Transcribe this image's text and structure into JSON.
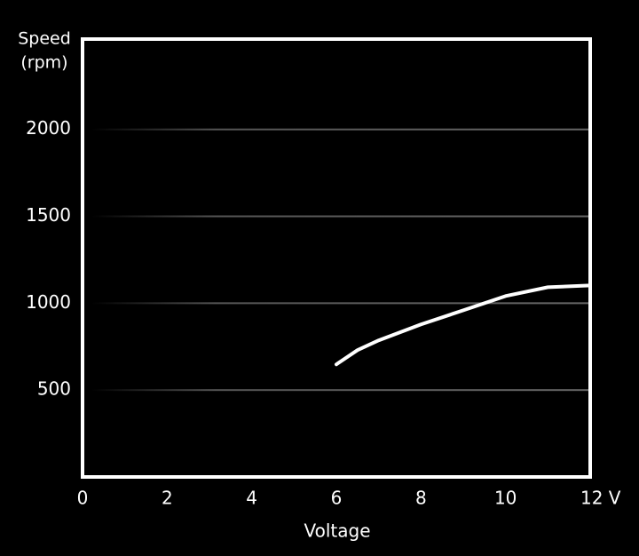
{
  "chart_data": {
    "type": "line",
    "y_label": [
      "Speed",
      "(rpm)"
    ],
    "x_label": "Voltage",
    "x": [
      6,
      6.5,
      7,
      8,
      9,
      10,
      11,
      12
    ],
    "series": [
      {
        "name": "Speed",
        "color": "#ffffff",
        "values": [
          648,
          730,
          786,
          878,
          959,
          1041,
          1092,
          1102
        ]
      }
    ],
    "xlim": [
      0,
      12
    ],
    "xticks": [
      0,
      2,
      4,
      6,
      8,
      10,
      {
        "value": 12,
        "label": "12 V"
      }
    ],
    "ylim": [
      0,
      2520
    ],
    "yticks": [
      500,
      1000,
      1500,
      2000
    ],
    "grid": true
  }
}
